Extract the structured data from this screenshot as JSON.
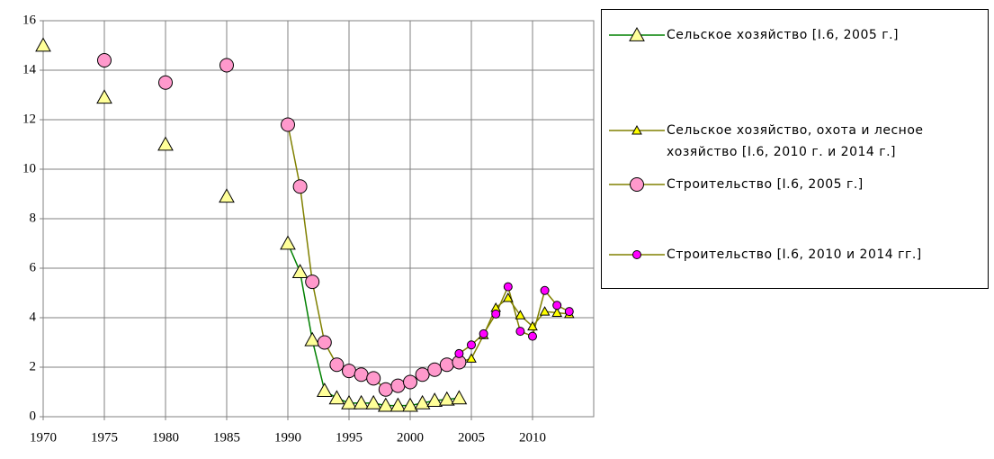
{
  "chart_data": {
    "type": "line",
    "x": [
      1970,
      1971,
      1972,
      1973,
      1974,
      1975,
      1976,
      1977,
      1978,
      1979,
      1980,
      1981,
      1982,
      1983,
      1984,
      1985,
      1986,
      1987,
      1988,
      1989,
      1990,
      1991,
      1992,
      1993,
      1994,
      1995,
      1996,
      1997,
      1998,
      1999,
      2000,
      2001,
      2002,
      2003,
      2004,
      2005,
      2006,
      2007,
      2008,
      2009,
      2010,
      2011,
      2012,
      2013
    ],
    "series": [
      {
        "name": "Сельское хозяйство [I.6, 2005 г.]",
        "color": "#008000",
        "marker": "triangle",
        "marker_color": "#ffff99",
        "values": [
          15,
          null,
          null,
          null,
          null,
          12.9,
          null,
          null,
          null,
          null,
          11,
          null,
          null,
          null,
          null,
          8.9,
          null,
          null,
          null,
          null,
          7.0,
          5.85,
          3.1,
          1.05,
          0.75,
          0.55,
          0.55,
          0.55,
          0.45,
          0.45,
          0.45,
          0.55,
          0.65,
          0.7,
          0.75,
          null,
          null,
          null,
          null,
          null,
          null,
          null,
          null,
          null
        ]
      },
      {
        "name": "Сельское хозяйство, охота и лесное хозяйство [I.6, 2010 г. и 2014 г.]",
        "color": "#808000",
        "marker": "triangle-small",
        "marker_color": "#ffff00",
        "values": [
          null,
          null,
          null,
          null,
          null,
          null,
          null,
          null,
          null,
          null,
          null,
          null,
          null,
          null,
          null,
          null,
          null,
          null,
          null,
          null,
          null,
          null,
          null,
          null,
          null,
          null,
          null,
          null,
          null,
          null,
          null,
          null,
          null,
          null,
          2.2,
          2.35,
          3.3,
          4.4,
          4.8,
          4.1,
          3.65,
          4.25,
          4.2,
          4.15
        ]
      },
      {
        "name": "Строительство [I.6, 2005 г.]",
        "color": "#808000",
        "marker": "circle",
        "marker_color": "#ff99cc",
        "values": [
          null,
          null,
          null,
          null,
          null,
          14.4,
          null,
          null,
          null,
          null,
          13.5,
          null,
          null,
          null,
          null,
          14.2,
          null,
          null,
          null,
          null,
          11.8,
          9.3,
          5.45,
          3.0,
          2.1,
          1.85,
          1.7,
          1.55,
          1.1,
          1.25,
          1.4,
          1.7,
          1.9,
          2.1,
          2.2,
          null,
          null,
          null,
          null,
          null,
          null,
          null,
          null,
          null
        ]
      },
      {
        "name": "Строительство [I.6, 2010 и 2014 гг.]",
        "color": "#808000",
        "marker": "circle-small",
        "marker_color": "#ff00ff",
        "values": [
          null,
          null,
          null,
          null,
          null,
          null,
          null,
          null,
          null,
          null,
          null,
          null,
          null,
          null,
          null,
          null,
          null,
          null,
          null,
          null,
          null,
          null,
          null,
          null,
          null,
          null,
          null,
          null,
          null,
          null,
          null,
          null,
          null,
          null,
          2.55,
          2.9,
          3.35,
          4.15,
          5.25,
          3.45,
          3.25,
          5.1,
          4.5,
          4.25
        ]
      }
    ],
    "xlim": [
      1970,
      2015
    ],
    "xticks": [
      1970,
      1975,
      1980,
      1985,
      1990,
      1995,
      2000,
      2005,
      2010
    ],
    "ylim": [
      0,
      16
    ],
    "yticks": [
      0,
      2,
      4,
      6,
      8,
      10,
      12,
      14,
      16
    ],
    "grid": true,
    "legend": "right"
  }
}
